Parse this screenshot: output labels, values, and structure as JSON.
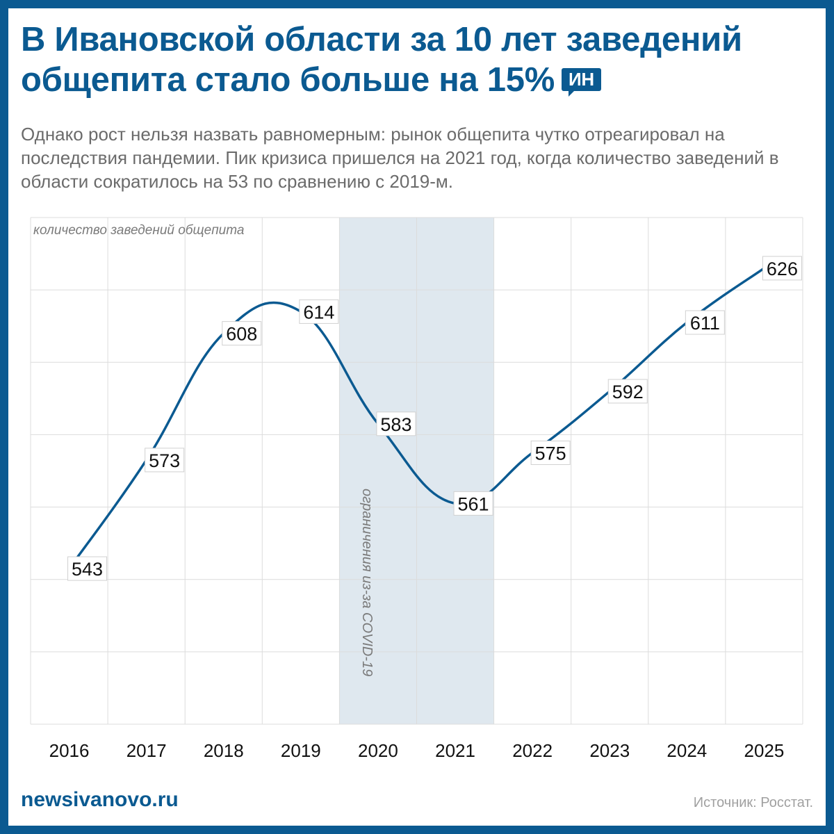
{
  "title": "В Ивановской области за 10 лет заведений общепита стало больше на 15%",
  "logo": "ИН",
  "subtitle": "Однако рост нельзя назвать равномерным: рынок общепита чутко отреагировал на последствия пандемии. Пик кризиса пришелся на 2021 год, когда количество заведений в области сократилось на 53 по сравнению с 2019-м.",
  "footer": {
    "site": "newsivanovo.ru",
    "source": "Источник: Росстат."
  },
  "colors": {
    "brand": "#0b5a91",
    "line": "#0b5a91",
    "band": "#dfe8ef"
  },
  "chart_data": {
    "type": "line",
    "ylabel": "количество заведений общепита",
    "categories": [
      "2016",
      "2017",
      "2018",
      "2019",
      "2020",
      "2021",
      "2022",
      "2023",
      "2024",
      "2025"
    ],
    "values": [
      543,
      573,
      608,
      614,
      583,
      561,
      575,
      592,
      611,
      626
    ],
    "ylim": [
      500,
      640
    ],
    "ystep": 20,
    "grid": true,
    "annotation": {
      "text": "ограничения из-за COVID-19",
      "from": "2020",
      "to": "2021"
    }
  }
}
